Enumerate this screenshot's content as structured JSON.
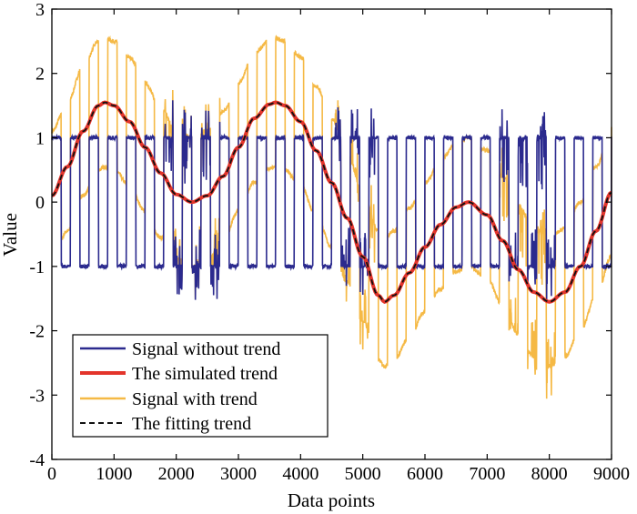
{
  "chart_data": {
    "type": "line",
    "xlabel": "Data points",
    "ylabel": "Value",
    "xlim": [
      0,
      9000
    ],
    "ylim": [
      -4,
      3
    ],
    "xticks": [
      0,
      1000,
      2000,
      3000,
      4000,
      5000,
      6000,
      7000,
      8000,
      9000
    ],
    "yticks": [
      -4,
      -3,
      -2,
      -1,
      0,
      1,
      2,
      3
    ],
    "xtick_labels": [
      "0",
      "1000",
      "2000",
      "3000",
      "4000",
      "5000",
      "6000",
      "7000",
      "8000",
      "9000"
    ],
    "ytick_labels": [
      "-4",
      "-3",
      "-2",
      "-1",
      "0",
      "1",
      "2",
      "3"
    ],
    "grid": false,
    "legend_position": "bottom-left",
    "legend": [
      "Signal without trend",
      "The simulated trend",
      "Signal with trend",
      "The fitting trend"
    ],
    "colors": {
      "signal_without_trend": "#2b2a8e",
      "simulated_trend": "#e3342b",
      "signal_with_trend": "#f5b945",
      "fitting_trend": "#111111"
    },
    "trend": {
      "x": [
        0,
        250,
        500,
        750,
        850,
        1000,
        1250,
        1500,
        1750,
        2000,
        2250,
        2500,
        2750,
        3000,
        3250,
        3500,
        3600,
        3750,
        4000,
        4250,
        4500,
        4750,
        5000,
        5250,
        5350,
        5500,
        5750,
        6000,
        6250,
        6500,
        6700,
        7000,
        7250,
        7500,
        7750,
        8000,
        8250,
        8500,
        8750,
        9000
      ],
      "y": [
        0.1,
        0.55,
        1.1,
        1.5,
        1.55,
        1.5,
        1.25,
        0.85,
        0.45,
        0.12,
        0,
        0.1,
        0.4,
        0.85,
        1.3,
        1.52,
        1.55,
        1.5,
        1.25,
        0.8,
        0.3,
        -0.25,
        -0.85,
        -1.45,
        -1.55,
        -1.45,
        -1.1,
        -0.7,
        -0.35,
        -0.08,
        0,
        -0.2,
        -0.6,
        -1.05,
        -1.4,
        -1.55,
        -1.4,
        -1.0,
        -0.45,
        0.15
      ]
    },
    "square_wave": {
      "amplitude": 1,
      "period": 300,
      "noisy_segments": [
        [
          1800,
          2700
        ],
        [
          4550,
          5200
        ],
        [
          7200,
          8100
        ]
      ]
    }
  }
}
